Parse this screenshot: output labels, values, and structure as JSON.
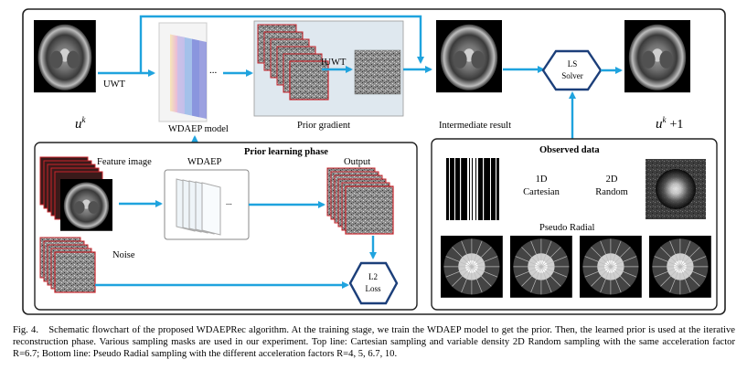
{
  "figure": {
    "labels": {
      "uwt": "UWT",
      "iuwt": "IUWT",
      "ellipsis": "...",
      "wdaep_model": "WDAEP model",
      "prior_gradient": "Prior gradient",
      "intermediate_result": "Intermediate result",
      "ls_solver_line1": "LS",
      "ls_solver_line2": "Solver",
      "uk_base": "u",
      "uk_sup": "k",
      "uk1_base": "u",
      "uk1_sup": "k",
      "uk1_suffix": "+1",
      "prior_learning_phase": "Prior learning phase",
      "feature_image": "Feature image",
      "wdaep": "WDAEP",
      "output": "Output",
      "noise": "Noise",
      "l2_line1": "L2",
      "l2_line2": "Loss",
      "observed_data": "Observed data",
      "cartesian_line1": "1D",
      "cartesian_line2": "Cartesian",
      "random_line1": "2D",
      "random_line2": "Random",
      "pseudo_radial": "Pseudo Radial"
    },
    "colors": {
      "arrow": "#1fa3de",
      "hexagon_stroke": "#1c3f7a",
      "stack_border": "#c8242b",
      "panel_border": "#222222",
      "prior_gradient_bg": "#dfe8ef"
    }
  },
  "caption": {
    "label": "Fig. 4.",
    "text": "Schematic flowchart of the proposed WDAEPRec algorithm. At the training stage, we train the WDAEP model to get the prior. Then, the learned prior is used at the iterative reconstruction phase. Various sampling masks are used in our experiment. Top line: Cartesian sampling and variable density 2D Random sampling with the same acceleration factor R=6.7; Bottom line: Pseudo Radial sampling with the different acceleration factors R=4, 5, 6.7, 10."
  }
}
